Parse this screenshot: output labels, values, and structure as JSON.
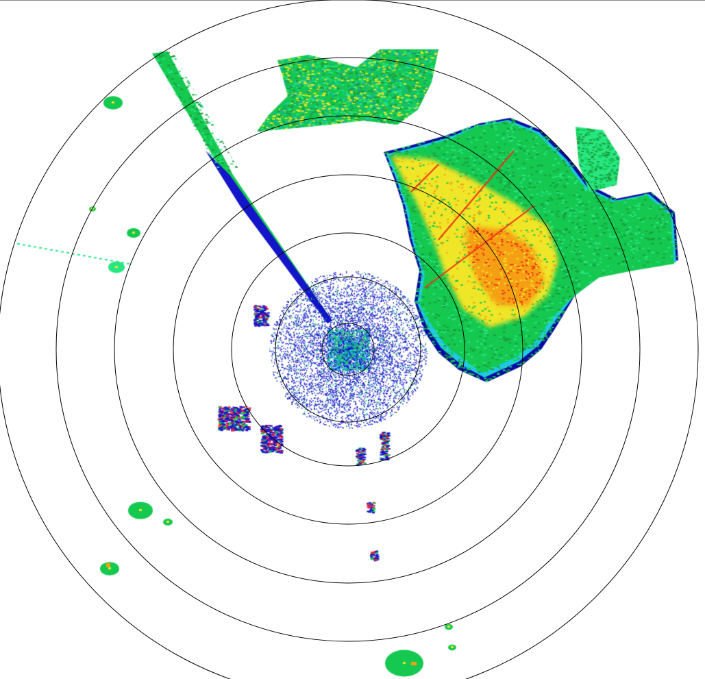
{
  "radar": {
    "range_ring_count": 7,
    "palette": {
      "light_blue": "#1ec8e6",
      "blue": "#1414c8",
      "dark_blue": "#0a0aa0",
      "teal": "#14b4a0",
      "green": "#14c850",
      "light_green": "#28e682",
      "dark_green": "#1e9b3c",
      "yellow": "#f0e628",
      "orange": "#f5a014",
      "red": "#f03214",
      "magenta": "#e6145a"
    },
    "ring_color": "#000000",
    "background": "#ffffff"
  }
}
